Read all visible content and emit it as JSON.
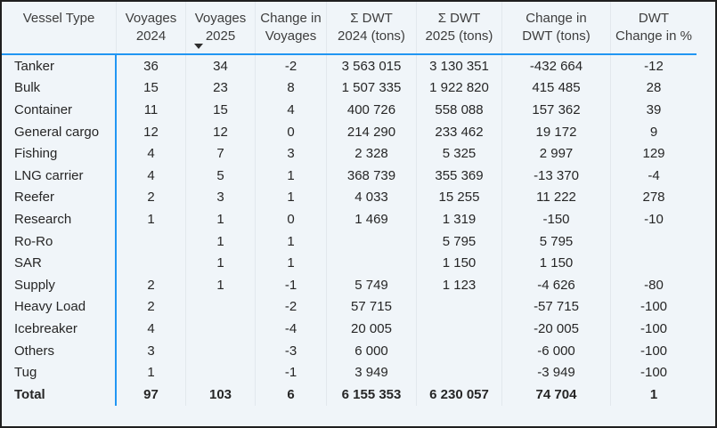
{
  "table": {
    "columns": [
      {
        "id": "vessel_type",
        "label_lines": [
          "Vessel Type"
        ],
        "align": "left",
        "sorted": null
      },
      {
        "id": "voyages_2024",
        "label_lines": [
          "Voyages",
          "2024"
        ],
        "align": "center",
        "sorted": null
      },
      {
        "id": "voyages_2025",
        "label_lines": [
          "Voyages",
          "2025"
        ],
        "align": "center",
        "sorted": "desc"
      },
      {
        "id": "change_voyages",
        "label_lines": [
          "Change in",
          "Voyages"
        ],
        "align": "center",
        "sorted": null
      },
      {
        "id": "dwt_2024",
        "label_lines": [
          "Σ DWT",
          "2024 (tons)"
        ],
        "align": "center",
        "sorted": null
      },
      {
        "id": "dwt_2025",
        "label_lines": [
          "Σ DWT",
          "2025 (tons)"
        ],
        "align": "center",
        "sorted": null
      },
      {
        "id": "change_dwt",
        "label_lines": [
          "Change in",
          "DWT (tons)"
        ],
        "align": "center",
        "sorted": null
      },
      {
        "id": "dwt_change_pct",
        "label_lines": [
          "DWT",
          "Change in %"
        ],
        "align": "center",
        "sorted": null
      }
    ],
    "sort_icon": "triangle-down",
    "rows": [
      [
        "Tanker",
        "36",
        "34",
        "-2",
        "3 563 015",
        "3 130 351",
        "-432 664",
        "-12"
      ],
      [
        "Bulk",
        "15",
        "23",
        "8",
        "1 507 335",
        "1 922 820",
        "415 485",
        "28"
      ],
      [
        "Container",
        "11",
        "15",
        "4",
        "400 726",
        "558 088",
        "157 362",
        "39"
      ],
      [
        "General cargo",
        "12",
        "12",
        "0",
        "214 290",
        "233 462",
        "19 172",
        "9"
      ],
      [
        "Fishing",
        "4",
        "7",
        "3",
        "2 328",
        "5 325",
        "2 997",
        "129"
      ],
      [
        "LNG carrier",
        "4",
        "5",
        "1",
        "368 739",
        "355 369",
        "-13 370",
        "-4"
      ],
      [
        "Reefer",
        "2",
        "3",
        "1",
        "4 033",
        "15 255",
        "11 222",
        "278"
      ],
      [
        "Research",
        "1",
        "1",
        "0",
        "1 469",
        "1 319",
        "-150",
        "-10"
      ],
      [
        "Ro-Ro",
        "",
        "1",
        "1",
        "",
        "5 795",
        "5 795",
        ""
      ],
      [
        "SAR",
        "",
        "1",
        "1",
        "",
        "1 150",
        "1 150",
        ""
      ],
      [
        "Supply",
        "2",
        "1",
        "-1",
        "5 749",
        "1 123",
        "-4 626",
        "-80"
      ],
      [
        "Heavy Load",
        "2",
        "",
        "-2",
        "57 715",
        "",
        "-57 715",
        "-100"
      ],
      [
        "Icebreaker",
        "4",
        "",
        "-4",
        "20 005",
        "",
        "-20 005",
        "-100"
      ],
      [
        "Others",
        "3",
        "",
        "-3",
        "6 000",
        "",
        "-6 000",
        "-100"
      ],
      [
        "Tug",
        "1",
        "",
        "-1",
        "3 949",
        "",
        "-3 949",
        "-100"
      ]
    ],
    "total_row": [
      "Total",
      "97",
      "103",
      "6",
      "6 155 353",
      "6 230 057",
      "74 704",
      "1"
    ]
  },
  "colors": {
    "accent_blue": "#2196f3",
    "grid_gray": "#e2e8ed",
    "outer_border": "#1f1f1f",
    "background": "#f0f5f9",
    "body_text": "#262626",
    "header_text": "#3d3d3d"
  }
}
